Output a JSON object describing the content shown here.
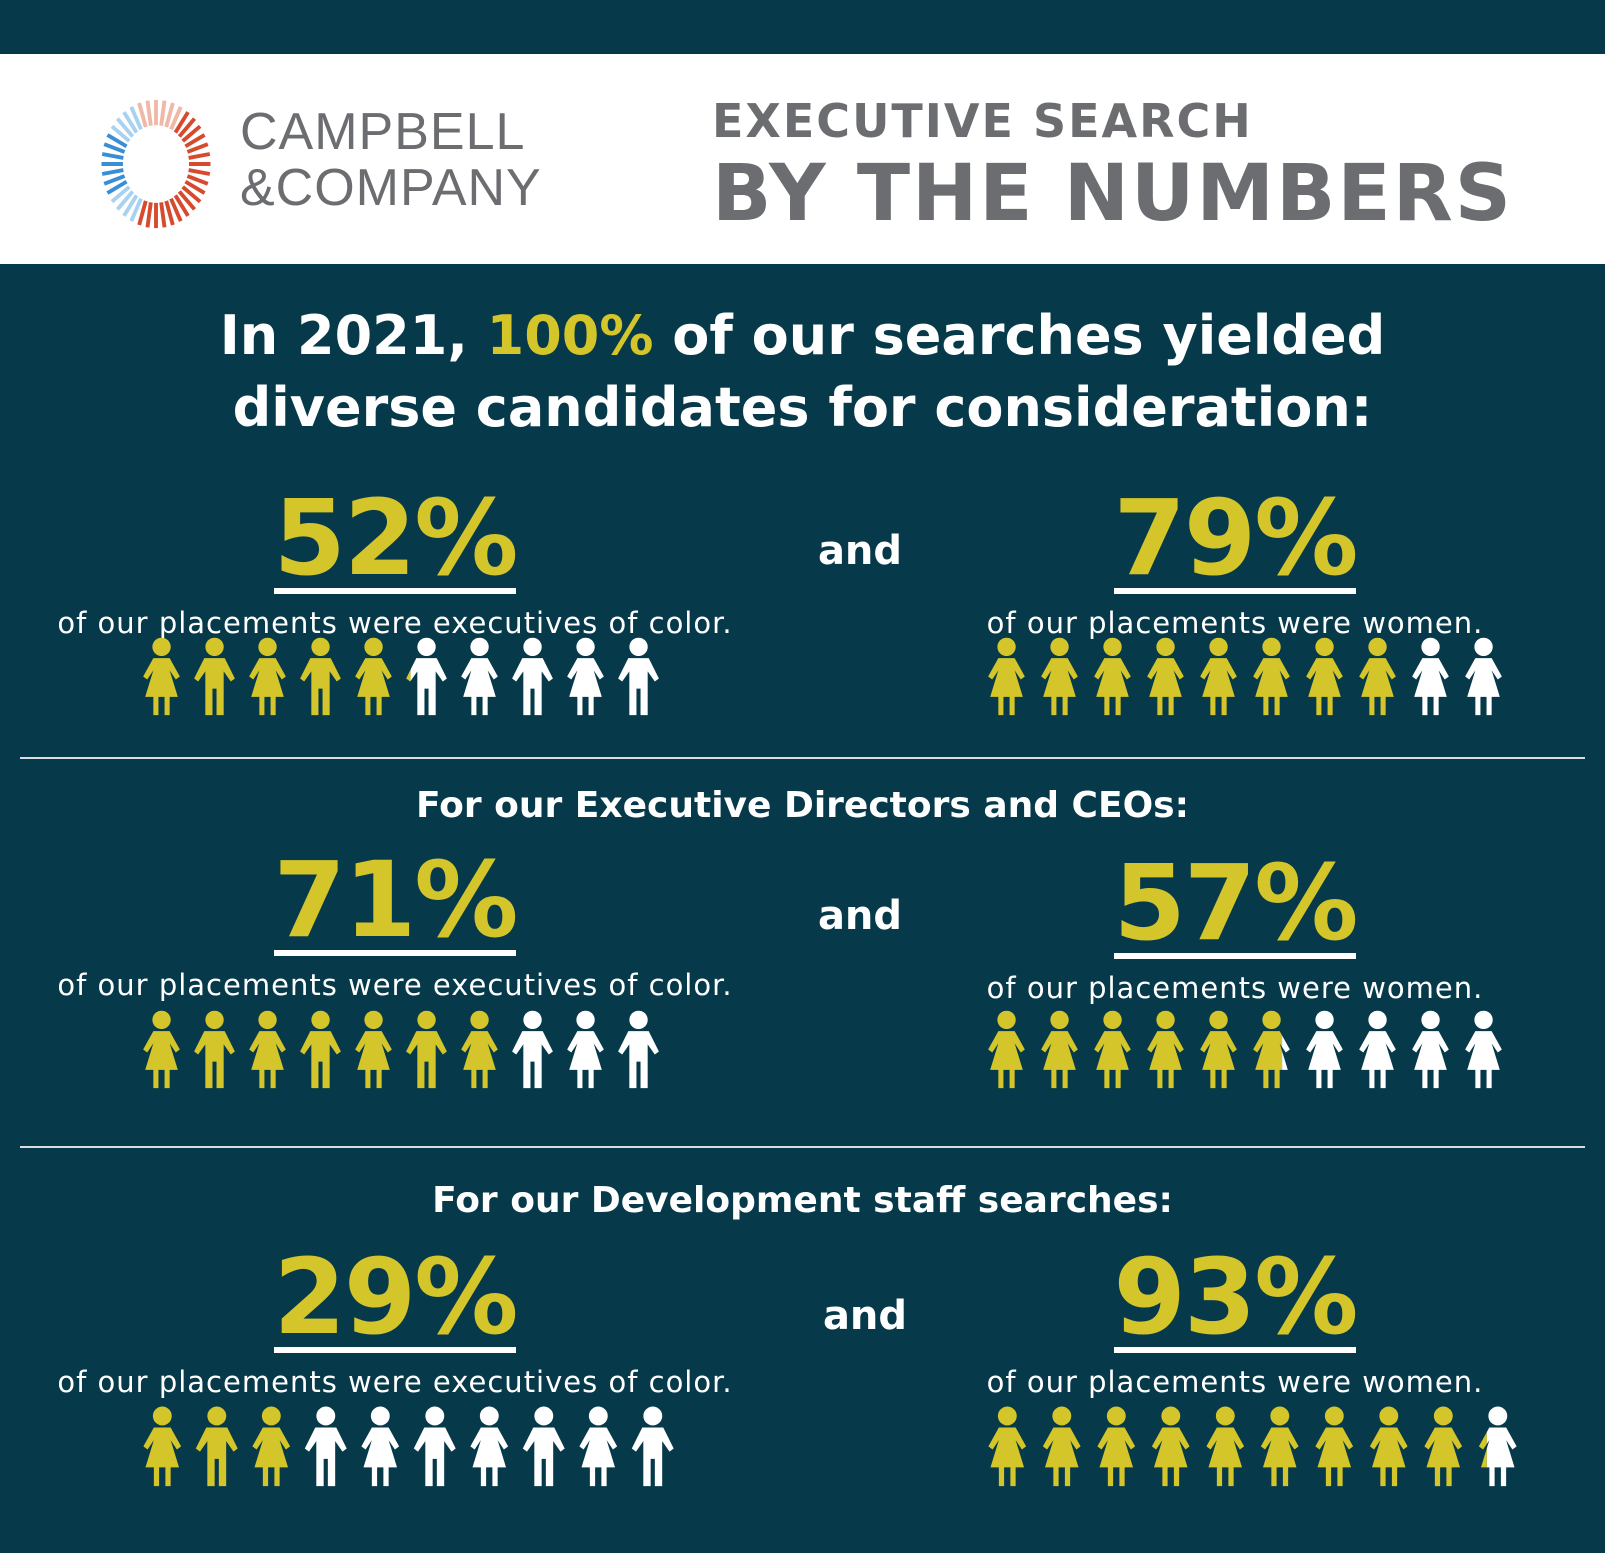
{
  "logo": {
    "line1": "CAMPBELL",
    "line2": "&COMPANY",
    "colors": {
      "red": "#d64a2e",
      "pink": "#f0b8a6",
      "blue": "#3a8ed6",
      "lightblue": "#a8d2f0"
    }
  },
  "header": {
    "subtitle": "EXECUTIVE SEARCH",
    "title": "BY THE NUMBERS"
  },
  "headline": {
    "part1": "In 2021, ",
    "highlight": "100%",
    "part2": " of our searches yielded",
    "line2": "diverse candidates for consideration:"
  },
  "colors": {
    "background": "#063a4b",
    "accent": "#d4c52a",
    "figure_empty": "#ffffff"
  },
  "and_label": "and",
  "rows": [
    {
      "heading": "",
      "left": {
        "percent": "52%",
        "value": 52,
        "desc": "of our placements were executives of color."
      },
      "right": {
        "percent": "79%",
        "value": 79,
        "desc": "of our placements were women."
      }
    },
    {
      "heading": "For our Executive Directors and CEOs:",
      "left": {
        "percent": "71%",
        "value": 71,
        "desc": "of our placements were executives of color."
      },
      "right": {
        "percent": "57%",
        "value": 57,
        "desc": "of our placements were women."
      }
    },
    {
      "heading": "For our Development staff searches:",
      "left": {
        "percent": "29%",
        "value": 29,
        "desc": "of our placements were executives of color."
      },
      "right": {
        "percent": "93%",
        "value": 93,
        "desc": "of our placements were women."
      }
    }
  ],
  "figure_patterns": {
    "left": [
      "woman",
      "man",
      "woman",
      "man",
      "woman",
      "man",
      "woman",
      "man",
      "woman",
      "man"
    ],
    "right": [
      "woman",
      "woman",
      "woman",
      "woman",
      "woman",
      "woman",
      "woman",
      "woman",
      "woman",
      "woman"
    ]
  }
}
